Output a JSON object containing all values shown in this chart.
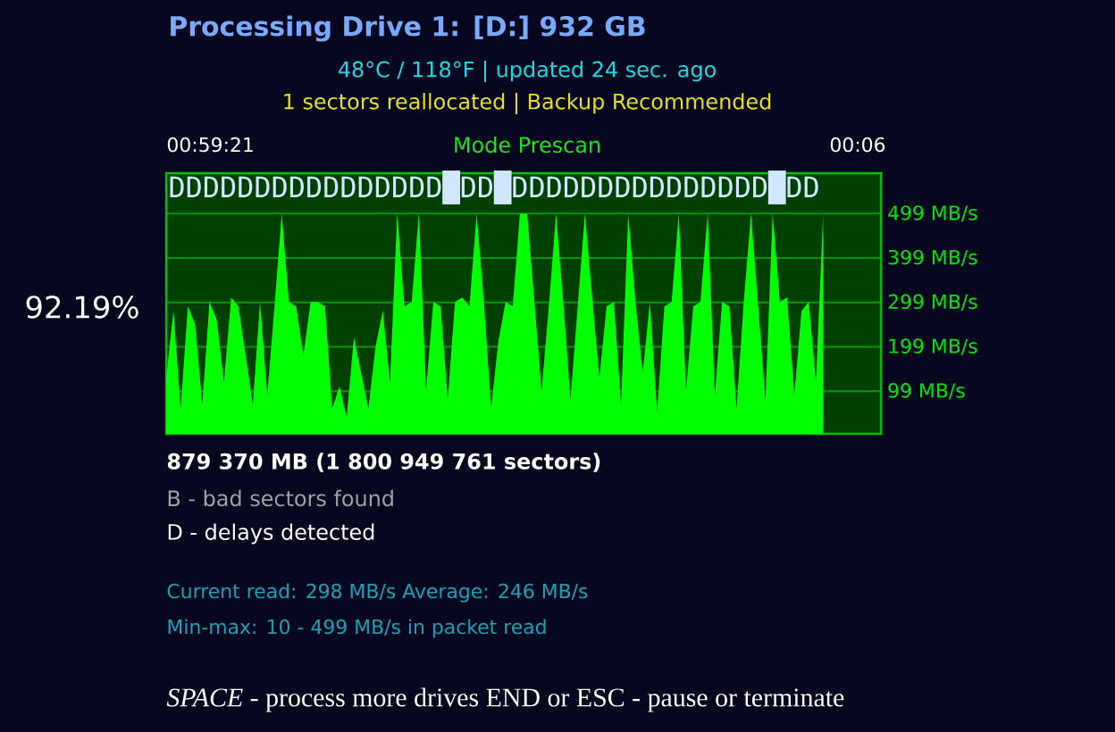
{
  "chart_data": {
    "type": "area",
    "title": "Processing Drive 1: [D:] 932 GB",
    "subtitle": "48°C / 118°F  |  updated 24 sec. ago",
    "annotations": [
      "1 sectors reallocated  |  Backup Recommended",
      "00:59:21",
      "Mode Prescan",
      "00:06",
      "DDDDDDDDDDDDDDDD█DD█DDDDDDDDDDDDDDD█DD",
      "92.19%",
      "**879 370 MB (1 800 949 761 sectors)**",
      "B - bad sectors found",
      "D - delays detected",
      "Current read: 298 MB/s Average: 246 MB/s",
      "Min-max: 10 - 499 MB/s in packet read",
      "*SPACE* - process more drives END or ESC - pause or terminate"
    ],
    "categories": [
      null,
      null,
      null,
      null,
      null,
      null,
      null,
      null,
      null,
      null,
      null,
      null,
      null,
      null,
      null,
      null,
      null,
      null,
      null,
      null,
      null,
      null,
      null,
      null,
      null,
      null,
      null,
      null,
      null,
      null,
      null,
      null,
      null,
      null,
      null,
      null,
      null,
      null,
      null,
      null,
      null,
      null,
      null,
      null,
      null,
      null,
      null,
      null,
      null,
      null,
      null,
      null,
      null,
      null,
      null,
      null,
      null,
      null,
      null,
      null,
      null,
      null,
      null,
      null,
      null,
      null,
      null,
      null,
      null,
      null,
      null,
      null,
      null,
      null,
      null,
      null,
      null,
      null,
      null,
      null,
      null,
      null,
      null,
      null,
      null,
      null,
      null,
      null,
      null,
      null,
      null,
      null,
      null,
      null,
      null,
      null,
      null,
      null,
      null,
      null
    ],
    "values": [
      130,
      280,
      60,
      290,
      250,
      70,
      300,
      260,
      120,
      310,
      290,
      180,
      70,
      300,
      90,
      290,
      499,
      300,
      290,
      180,
      300,
      300,
      290,
      60,
      110,
      40,
      220,
      140,
      60,
      200,
      280,
      120,
      499,
      290,
      300,
      499,
      100,
      300,
      290,
      80,
      300,
      310,
      290,
      499,
      300,
      60,
      210,
      300,
      290,
      499,
      499,
      300,
      100,
      290,
      499,
      300,
      80,
      290,
      499,
      310,
      130,
      290,
      300,
      70,
      499,
      300,
      140,
      300,
      50,
      290,
      300,
      499,
      100,
      290,
      300,
      499,
      90,
      300,
      290,
      60,
      300,
      499,
      290,
      80,
      499,
      300,
      310,
      90,
      280,
      300,
      120,
      499,
      null,
      null,
      null,
      null,
      null,
      null,
      null,
      null
    ],
    "color": "#00ff00",
    "ylim": [
      3,
      590
    ],
    "yticks": [
      {
        "value": 99,
        "label": "99 MB/s"
      },
      {
        "value": 199,
        "label": "199 MB/s"
      },
      {
        "value": 299,
        "label": "299 MB/s"
      },
      {
        "value": 399,
        "label": "399 MB/s"
      },
      {
        "value": 499,
        "label": "499 MB/s"
      }
    ],
    "grid": "y",
    "tick_labels": "y"
  }
}
